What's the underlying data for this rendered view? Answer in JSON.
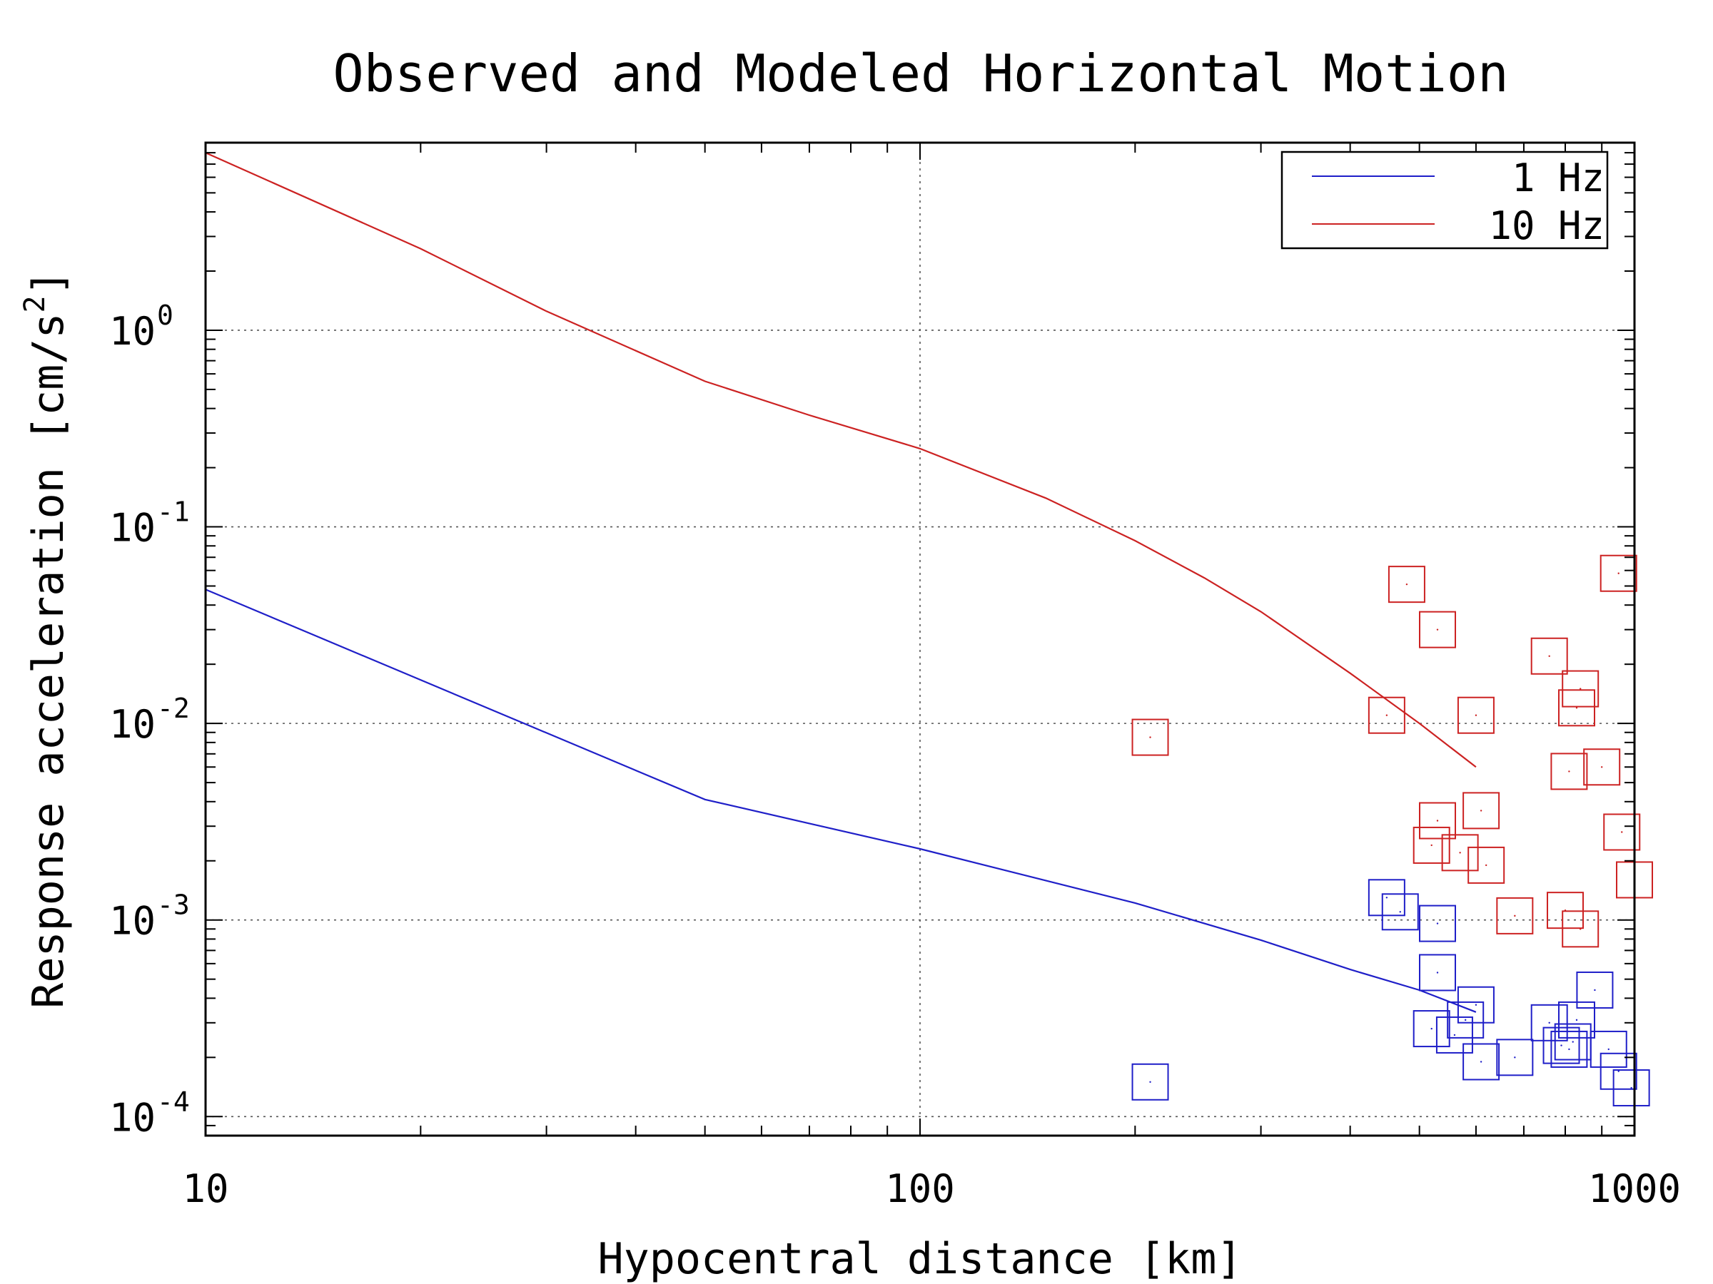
{
  "chart_data": {
    "type": "scatter",
    "title": "Observed and Modeled Horizontal Motion",
    "xlabel": "Hypocentral distance [km]",
    "ylabel_text": "Response acceleration [cm/s",
    "ylabel_sup": "2",
    "ylabel_end": "]",
    "xscale": "log",
    "yscale": "log",
    "xlim": [
      10,
      1000
    ],
    "ylim": [
      8e-05,
      9
    ],
    "xticks": [
      {
        "value": 10,
        "label": "10"
      },
      {
        "value": 100,
        "label": "100"
      },
      {
        "value": 1000,
        "label": "1000"
      }
    ],
    "yticks": [
      {
        "value": 1,
        "base": "10",
        "exp": "0"
      },
      {
        "value": 0.1,
        "base": "10",
        "exp": "-1"
      },
      {
        "value": 0.01,
        "base": "10",
        "exp": "-2"
      },
      {
        "value": 0.001,
        "base": "10",
        "exp": "-3"
      },
      {
        "value": 0.0001,
        "base": "10",
        "exp": "-4"
      }
    ],
    "grid": true,
    "legend_position": "top-right",
    "series": [
      {
        "name": "1 Hz",
        "color": "#1f1fc8",
        "model": [
          [
            10,
            0.048
          ],
          [
            50,
            0.0041
          ],
          [
            100,
            0.0023
          ],
          [
            200,
            0.00122
          ],
          [
            300,
            0.00079
          ],
          [
            400,
            0.00056
          ],
          [
            500,
            0.00044
          ],
          [
            600,
            0.00034
          ]
        ],
        "observed": [
          [
            210,
            0.00015
          ],
          [
            450,
            0.0013
          ],
          [
            470,
            0.0011
          ],
          [
            530,
            0.00096
          ],
          [
            530,
            0.00054
          ],
          [
            520,
            0.00028
          ],
          [
            560,
            0.00026
          ],
          [
            580,
            0.00031
          ],
          [
            600,
            0.00037
          ],
          [
            610,
            0.00019
          ],
          [
            680,
            0.0002
          ],
          [
            760,
            0.0003
          ],
          [
            790,
            0.00023
          ],
          [
            810,
            0.00022
          ],
          [
            820,
            0.00024
          ],
          [
            830,
            0.00031
          ],
          [
            880,
            0.00044
          ],
          [
            920,
            0.00022
          ],
          [
            950,
            0.00017
          ],
          [
            990,
            0.00014
          ]
        ]
      },
      {
        "name": "10 Hz",
        "color": "#cc2222",
        "model": [
          [
            10,
            8.0
          ],
          [
            20,
            2.6
          ],
          [
            30,
            1.25
          ],
          [
            50,
            0.55
          ],
          [
            70,
            0.37
          ],
          [
            100,
            0.25
          ],
          [
            150,
            0.14
          ],
          [
            200,
            0.085
          ],
          [
            250,
            0.055
          ],
          [
            300,
            0.037
          ],
          [
            400,
            0.018
          ],
          [
            500,
            0.01
          ],
          [
            600,
            0.006
          ]
        ],
        "observed": [
          [
            210,
            0.0085
          ],
          [
            450,
            0.011
          ],
          [
            480,
            0.051
          ],
          [
            520,
            0.0024
          ],
          [
            530,
            0.0032
          ],
          [
            530,
            0.03
          ],
          [
            570,
            0.0022
          ],
          [
            600,
            0.011
          ],
          [
            610,
            0.0036
          ],
          [
            620,
            0.0019
          ],
          [
            680,
            0.00105
          ],
          [
            760,
            0.022
          ],
          [
            800,
            0.00112
          ],
          [
            810,
            0.0057
          ],
          [
            830,
            0.012
          ],
          [
            840,
            0.015
          ],
          [
            840,
            0.0009
          ],
          [
            900,
            0.006
          ],
          [
            950,
            0.058
          ],
          [
            960,
            0.0028
          ],
          [
            1000,
            0.0016
          ]
        ]
      }
    ]
  }
}
